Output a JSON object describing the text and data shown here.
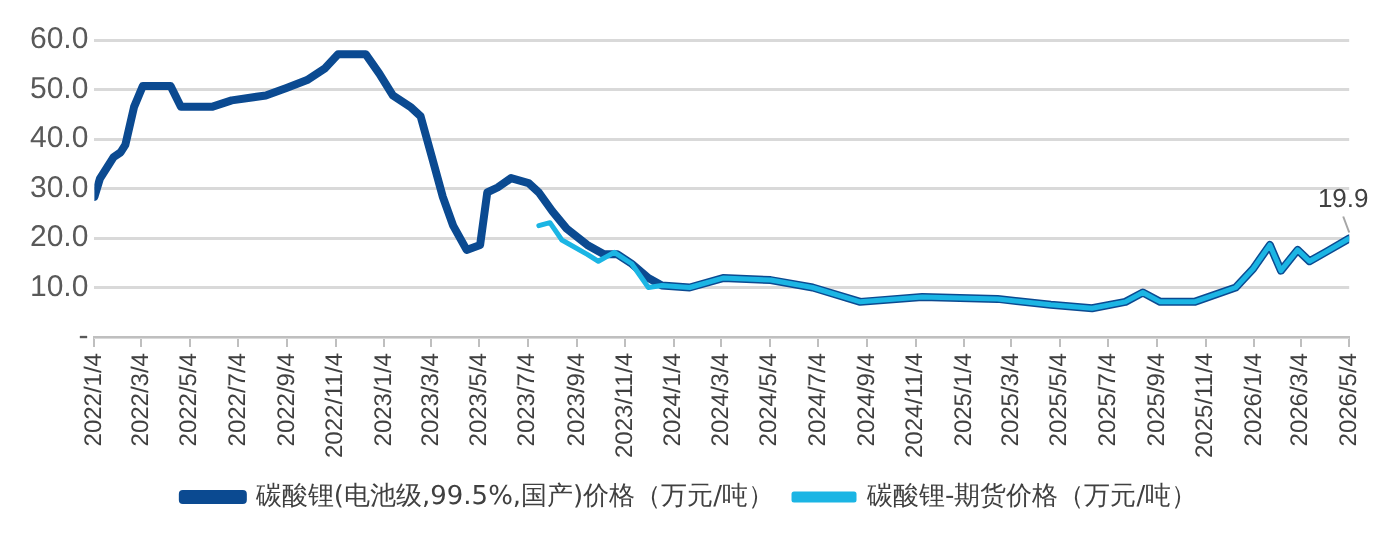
{
  "chart_data": {
    "type": "line",
    "x": [
      "2022-01-04",
      "2022-01-11",
      "2022-01-28",
      "2022-02-06",
      "2022-02-12",
      "2022-02-23",
      "2022-03-06",
      "2022-04-10",
      "2022-04-23",
      "2022-06-01",
      "2022-06-26",
      "2022-08-08",
      "2022-09-03",
      "2022-09-29",
      "2022-10-21",
      "2022-11-07",
      "2022-12-12",
      "2022-12-29",
      "2023-01-15",
      "2023-02-06",
      "2023-02-19",
      "2023-03-06",
      "2023-03-19",
      "2023-04-01",
      "2023-04-18",
      "2023-05-05",
      "2023-05-14",
      "2023-05-27",
      "2023-06-13",
      "2023-07-05",
      "2023-07-18",
      "2023-08-04",
      "2023-08-22",
      "2023-09-17",
      "2023-10-08",
      "2023-10-25",
      "2023-11-12",
      "2023-12-03",
      "2023-12-20",
      "2024-01-24",
      "2024-03-06",
      "2024-05-05",
      "2024-06-27",
      "2024-08-26",
      "2024-11-12",
      "2025-02-15",
      "2025-04-23",
      "2025-06-14",
      "2025-07-26",
      "2025-08-17",
      "2025-09-08",
      "2025-10-21",
      "2025-12-12",
      "2026-01-03",
      "2026-01-24",
      "2026-02-07",
      "2026-02-28",
      "2026-03-15",
      "2026-04-06",
      "2026-05-04"
    ],
    "series": [
      {
        "name": "碳酸锂(电池级,99.5%,国产)价格（万元/吨）",
        "color": "#0b4a91",
        "values": [
          28.3,
          32,
          36.3,
          37.3,
          38.8,
          46.5,
          50.7,
          50.7,
          46.5,
          46.5,
          47.8,
          48.8,
          50.3,
          51.9,
          54.2,
          57.1,
          57.1,
          53.2,
          48.8,
          46.5,
          44.6,
          35.9,
          28.3,
          22.5,
          17.6,
          18.6,
          29.2,
          30.2,
          32.1,
          31.1,
          29.2,
          25.4,
          21.9,
          18.6,
          16.7,
          16.7,
          14.8,
          11.9,
          10.4,
          10,
          11.9,
          11.5,
          10,
          7.1,
          8.1,
          7.7,
          6.5,
          5.8,
          7.1,
          9,
          7.1,
          7.1,
          10,
          13.8,
          18.6,
          13.4,
          17.6,
          15.3,
          17.3,
          19.9
        ]
      },
      {
        "name": "碳酸锂-期货价格（万元/吨）",
        "color": "#1bb5e4",
        "x": [
          "2023-07-18",
          "2023-08-01",
          "2023-08-16",
          "2023-09-17",
          "2023-10-01",
          "2023-10-21",
          "2023-11-12",
          "2023-12-03",
          "2023-12-20",
          "2024-01-24",
          "2024-03-06",
          "2024-05-05",
          "2024-06-27",
          "2024-08-26",
          "2024-11-12",
          "2025-02-15",
          "2025-04-23",
          "2025-06-14",
          "2025-07-26",
          "2025-08-17",
          "2025-09-08",
          "2025-10-21",
          "2025-12-12",
          "2026-01-03",
          "2026-01-24",
          "2026-02-07",
          "2026-02-28",
          "2026-03-15",
          "2026-04-06",
          "2026-05-04"
        ],
        "values": [
          22.5,
          23.1,
          19.6,
          16.7,
          15.3,
          17.1,
          14.8,
          10,
          10.4,
          10,
          11.9,
          11.5,
          10,
          7.1,
          8.1,
          7.7,
          6.5,
          5.8,
          7.1,
          9,
          7.1,
          7.1,
          10,
          13.8,
          18.6,
          13.4,
          17.6,
          15.3,
          17.3,
          19.9
        ]
      }
    ],
    "xlim": [
      "2022-01-04",
      "2026-05-04"
    ],
    "xticks": [
      {
        "value": "2022-01-04",
        "label": "2022/1/4"
      },
      {
        "value": "2022-03-04",
        "label": "2022/3/4"
      },
      {
        "value": "2022-05-04",
        "label": "2022/5/4"
      },
      {
        "value": "2022-07-04",
        "label": "2022/7/4"
      },
      {
        "value": "2022-09-04",
        "label": "2022/9/4"
      },
      {
        "value": "2022-11-04",
        "label": "2022/11/4"
      },
      {
        "value": "2023-01-04",
        "label": "2023/1/4"
      },
      {
        "value": "2023-03-04",
        "label": "2023/3/4"
      },
      {
        "value": "2023-05-04",
        "label": "2023/5/4"
      },
      {
        "value": "2023-07-04",
        "label": "2023/7/4"
      },
      {
        "value": "2023-09-04",
        "label": "2023/9/4"
      },
      {
        "value": "2023-11-04",
        "label": "2023/11/4"
      },
      {
        "value": "2024-01-04",
        "label": "2024/1/4"
      },
      {
        "value": "2024-03-04",
        "label": "2024/3/4"
      },
      {
        "value": "2024-05-04",
        "label": "2024/5/4"
      },
      {
        "value": "2024-07-04",
        "label": "2024/7/4"
      },
      {
        "value": "2024-09-04",
        "label": "2024/9/4"
      },
      {
        "value": "2024-11-04",
        "label": "2024/11/4"
      },
      {
        "value": "2025-01-04",
        "label": "2025/1/4"
      },
      {
        "value": "2025-03-04",
        "label": "2025/3/4"
      },
      {
        "value": "2025-05-04",
        "label": "2025/5/4"
      },
      {
        "value": "2025-07-04",
        "label": "2025/7/4"
      },
      {
        "value": "2025-09-04",
        "label": "2025/9/4"
      },
      {
        "value": "2025-11-04",
        "label": "2025/11/4"
      },
      {
        "value": "2026-01-04",
        "label": "2026/1/4"
      },
      {
        "value": "2026-03-04",
        "label": "2026/3/4"
      },
      {
        "value": "2026-05-04",
        "label": "2026/5/4"
      }
    ],
    "ylim": [
      0,
      60
    ],
    "yticks": [
      {
        "value": 0,
        "label": "-"
      },
      {
        "value": 10,
        "label": "10.0"
      },
      {
        "value": 20,
        "label": "20.0"
      },
      {
        "value": 30,
        "label": "30.0"
      },
      {
        "value": 40,
        "label": "40.0"
      },
      {
        "value": 50,
        "label": "50.0"
      },
      {
        "value": 60,
        "label": "60.0"
      }
    ],
    "grid": "y",
    "legend": "bottom",
    "marker": "none",
    "line_style": "solid",
    "annotations": [
      {
        "text": "19.9",
        "x": "2026-05-04",
        "y": 19.9
      }
    ]
  }
}
